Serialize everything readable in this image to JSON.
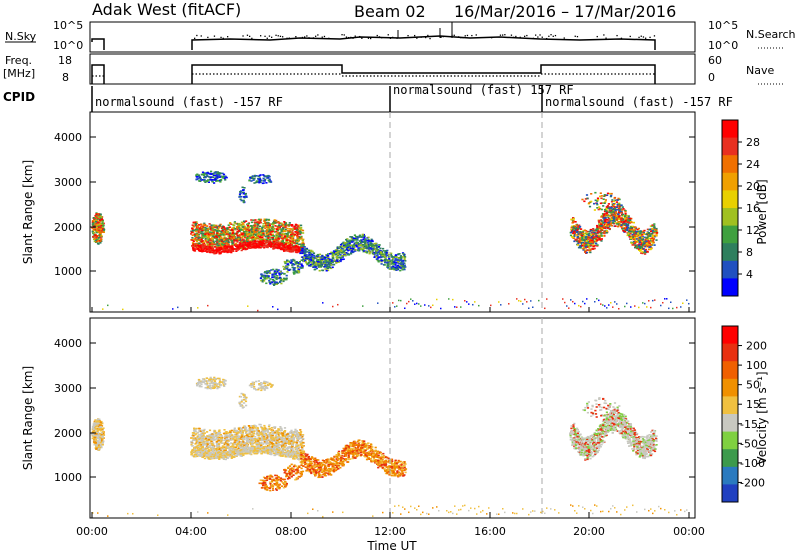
{
  "header": {
    "title": "Adak West (fitACF)",
    "beam": "Beam 02",
    "dates": "16/Mar/2016 – 17/Mar/2016"
  },
  "nsky_panel": {
    "left_label": "N.Sky",
    "right_label": "N.Search",
    "left_ticks": [
      "10^5",
      "10^0"
    ],
    "right_ticks": [
      "10^5",
      "10^0"
    ]
  },
  "freq_panel": {
    "left_label_line1": "Freq.",
    "left_label_line2": "[MHz]",
    "right_label": "Nave",
    "left_ticks": [
      "18",
      "8"
    ],
    "right_ticks": [
      "60",
      "0"
    ]
  },
  "cpid_panel": {
    "label": "CPID",
    "segments": [
      {
        "text": "normalsound (fast) -157 RF"
      },
      {
        "text": "normalsound (fast) 157 RF"
      },
      {
        "text": "normalsound (fast) -157 RF"
      }
    ]
  },
  "chart_data": [
    {
      "type": "heatmap",
      "name": "power",
      "ylabel": "Slant Range [km]",
      "yticks": [
        "1000",
        "2000",
        "3000",
        "4000"
      ],
      "colorbar_label": "Power [dB]",
      "colorbar_ticks": [
        "4",
        "8",
        "12",
        "16",
        "20",
        "24",
        "28"
      ],
      "colors": [
        "#0000ff",
        "#2050c0",
        "#2e7f5e",
        "#3fa03f",
        "#a0c020",
        "#e8d000",
        "#f0a000",
        "#f07000",
        "#e83020",
        "#ff0000"
      ]
    },
    {
      "type": "heatmap",
      "name": "velocity",
      "ylabel": "Slant Range [km]",
      "yticks": [
        "1000",
        "2000",
        "3000",
        "4000"
      ],
      "colorbar_label": "Velocity [m s⁻¹]",
      "colorbar_ticks": [
        "200",
        "100",
        "50",
        "15",
        "-15",
        "-50",
        "-100",
        "-200"
      ],
      "colors": [
        "#2040c0",
        "#2a7abf",
        "#3c9a4c",
        "#7fd040",
        "#c8c8c0",
        "#f0c040",
        "#f09000",
        "#f06000",
        "#e83010",
        "#ff0000"
      ]
    }
  ],
  "xaxis": {
    "ticks": [
      "00:00",
      "04:00",
      "08:00",
      "12:00",
      "16:00",
      "20:00",
      "00:00"
    ],
    "label": "Time UT"
  }
}
